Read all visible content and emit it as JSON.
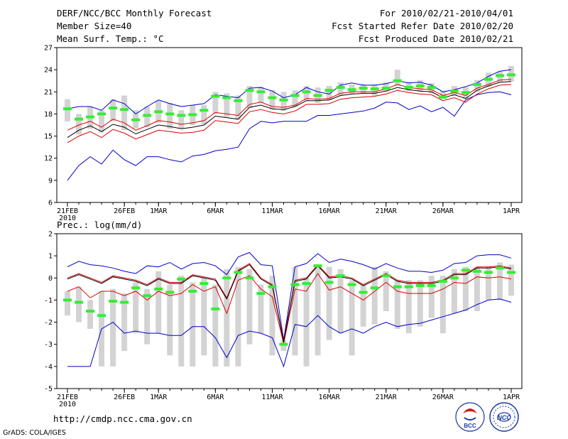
{
  "header": {
    "title": "DERF/NCC/BCC Monthly Forecast",
    "member_size": "Member Size=40",
    "period": "For 2010/02/21-2010/04/01",
    "fcst_started": "Fcst Started Refer Date 2010/02/20",
    "fcst_produced": "Fcst Produced Date 2010/02/21"
  },
  "footer": {
    "url": "http://cmdp.ncc.cma.gov.cn",
    "grads_credit": "GrADS: COLA/IGES",
    "logo_bcc_text": "BCC",
    "logo_ncc_text": "NCC"
  },
  "colors": {
    "max_min_line": "#0000cc",
    "mean_line": "#000000",
    "spread_line": "#dd0000",
    "median_marker": "#33ee33",
    "box": "#d3d3d3"
  },
  "chart_data": [
    {
      "type": "line",
      "title": "Mean Surf. Temp.: °C",
      "ylim": [
        6,
        27
      ],
      "yticks": [
        6,
        9,
        12,
        15,
        18,
        21,
        24,
        27
      ],
      "xtick_labels": [
        "21FEB",
        "26FEB",
        "1MAR",
        "6MAR",
        "11MAR",
        "16MAR",
        "21MAR",
        "26MAR",
        "1APR"
      ],
      "xtick_days": [
        0,
        5,
        8,
        13,
        18,
        23,
        28,
        33,
        39
      ],
      "x_year_label": "2010",
      "series": [
        {
          "name": "max",
          "values": [
            18.7,
            19.0,
            19.0,
            18.5,
            19.9,
            19.4,
            18.0,
            19.0,
            19.9,
            19.4,
            19.0,
            19.2,
            19.4,
            20.6,
            20.4,
            20.2,
            21.5,
            21.6,
            21.1,
            20.2,
            20.6,
            21.6,
            21.0,
            20.7,
            21.9,
            22.2,
            21.9,
            21.9,
            22.1,
            22.5,
            22.2,
            22.3,
            21.9,
            21.0,
            21.3,
            21.7,
            22.2,
            23.1,
            23.8,
            24.0
          ]
        },
        {
          "name": "spread_upper",
          "values": [
            15.8,
            16.5,
            17.0,
            16.2,
            17.3,
            16.8,
            15.8,
            16.4,
            17.1,
            16.9,
            16.6,
            16.8,
            17.1,
            18.2,
            18.0,
            17.8,
            19.3,
            19.6,
            19.0,
            18.9,
            19.2,
            20.1,
            20.0,
            20.1,
            20.8,
            21.0,
            21.0,
            21.0,
            21.4,
            22.0,
            21.6,
            21.4,
            21.3,
            20.5,
            20.9,
            20.5,
            21.5,
            22.0,
            22.6,
            22.7
          ]
        },
        {
          "name": "mean",
          "values": [
            14.8,
            15.8,
            16.4,
            15.6,
            16.6,
            16.2,
            15.3,
            15.9,
            16.5,
            16.3,
            16.0,
            16.2,
            16.5,
            17.7,
            17.5,
            17.3,
            18.9,
            19.2,
            18.7,
            18.6,
            19.0,
            19.8,
            19.8,
            19.9,
            20.5,
            20.7,
            20.8,
            20.8,
            21.1,
            21.6,
            21.3,
            21.1,
            21.0,
            20.2,
            20.6,
            20.1,
            21.2,
            21.8,
            22.3,
            22.4
          ]
        },
        {
          "name": "spread_lower",
          "values": [
            14.1,
            15.0,
            15.6,
            14.8,
            15.9,
            15.4,
            14.6,
            15.2,
            15.8,
            15.6,
            15.4,
            15.5,
            15.8,
            17.1,
            16.9,
            16.7,
            18.3,
            18.6,
            18.2,
            18.0,
            18.4,
            19.3,
            19.3,
            19.4,
            20.0,
            20.2,
            20.3,
            20.4,
            20.7,
            21.2,
            20.9,
            20.7,
            20.6,
            19.8,
            20.2,
            19.6,
            20.7,
            21.4,
            21.9,
            22.0
          ]
        },
        {
          "name": "min",
          "values": [
            9.0,
            11.0,
            12.2,
            11.2,
            13.1,
            11.8,
            11.0,
            12.2,
            12.2,
            11.8,
            11.5,
            12.3,
            12.5,
            13.0,
            13.2,
            13.5,
            16.0,
            17.0,
            16.8,
            17.0,
            17.0,
            17.0,
            17.8,
            17.8,
            18.0,
            18.2,
            18.4,
            18.8,
            19.6,
            19.5,
            18.6,
            19.1,
            18.3,
            18.9,
            17.7,
            19.9,
            20.6,
            20.9,
            21.0,
            20.6
          ]
        },
        {
          "name": "median",
          "values": [
            18.7,
            17.3,
            17.6,
            18.0,
            18.8,
            18.6,
            17.2,
            17.8,
            18.3,
            18.0,
            17.8,
            17.9,
            18.5,
            20.4,
            20.2,
            19.8,
            21.2,
            21.0,
            20.2,
            19.9,
            20.5,
            21.0,
            20.5,
            21.2,
            21.6,
            21.3,
            21.5,
            21.4,
            21.5,
            22.5,
            21.6,
            21.8,
            21.6,
            20.3,
            21.1,
            20.9,
            22.0,
            22.7,
            23.2,
            23.3
          ]
        },
        {
          "name": "box_top",
          "values": [
            20.0,
            18.0,
            19.0,
            18.5,
            20.0,
            20.5,
            18.5,
            19.0,
            19.8,
            19.5,
            18.5,
            19.2,
            19.2,
            21.0,
            20.8,
            20.5,
            21.8,
            21.7,
            21.2,
            21.0,
            21.2,
            21.8,
            21.6,
            21.8,
            22.3,
            22.0,
            22.0,
            22.0,
            22.3,
            24.0,
            22.3,
            22.6,
            22.2,
            21.1,
            21.8,
            21.6,
            22.6,
            23.6,
            23.8,
            24.5
          ]
        },
        {
          "name": "box_bottom",
          "values": [
            17.0,
            15.2,
            16.0,
            15.5,
            17.0,
            15.8,
            16.0,
            16.2,
            16.8,
            16.0,
            16.0,
            16.5,
            16.6,
            18.0,
            17.6,
            17.2,
            18.8,
            19.5,
            18.6,
            18.4,
            19.0,
            19.8,
            19.5,
            19.9,
            20.5,
            20.7,
            20.8,
            20.5,
            21.0,
            21.8,
            21.1,
            21.0,
            20.8,
            20.0,
            20.5,
            20.0,
            21.0,
            21.7,
            22.3,
            22.4
          ]
        }
      ]
    },
    {
      "type": "line",
      "title": "Prec.: log(mm/d)",
      "ylim": [
        -5,
        2
      ],
      "yticks": [
        -5,
        -4,
        -3,
        -2,
        -1,
        0,
        1,
        2
      ],
      "xtick_labels": [
        "21FEB",
        "26FEB",
        "1MAR",
        "6MAR",
        "11MAR",
        "16MAR",
        "21MAR",
        "26MAR",
        "1APR"
      ],
      "xtick_days": [
        0,
        5,
        8,
        13,
        18,
        23,
        28,
        33,
        39
      ],
      "x_year_label": "2010",
      "series": [
        {
          "name": "max",
          "values": [
            0.5,
            0.75,
            0.6,
            0.55,
            0.45,
            0.3,
            0.2,
            0.55,
            0.5,
            0.7,
            0.4,
            0.65,
            0.7,
            0.55,
            0.15,
            0.95,
            1.15,
            0.6,
            0.55,
            -2.8,
            0.5,
            0.65,
            1.1,
            0.7,
            0.85,
            0.75,
            0.6,
            0.4,
            0.65,
            0.45,
            0.3,
            0.3,
            0.25,
            0.35,
            0.65,
            0.7,
            1.0,
            1.05,
            1.05,
            0.9
          ]
        },
        {
          "name": "spread_upper",
          "values": [
            0.0,
            0.2,
            0.0,
            -0.2,
            0.1,
            0.0,
            -0.1,
            -0.3,
            0.0,
            -0.2,
            -0.2,
            0.15,
            0.05,
            -0.05,
            -0.9,
            0.35,
            0.65,
            0.0,
            -0.3,
            -2.85,
            -0.1,
            0.0,
            0.6,
            0.05,
            0.1,
            0.0,
            -0.3,
            -0.05,
            0.2,
            -0.1,
            -0.2,
            -0.2,
            -0.2,
            -0.1,
            0.2,
            0.2,
            0.5,
            0.5,
            0.55,
            0.45
          ]
        },
        {
          "name": "mean",
          "values": [
            -0.05,
            0.15,
            -0.05,
            -0.25,
            0.05,
            -0.05,
            -0.15,
            -0.35,
            -0.05,
            -0.25,
            -0.25,
            0.1,
            0.0,
            -0.1,
            -0.95,
            0.3,
            0.6,
            -0.05,
            -0.35,
            -2.9,
            -0.15,
            -0.05,
            0.55,
            0.0,
            0.05,
            -0.05,
            -0.35,
            -0.1,
            0.15,
            -0.15,
            -0.25,
            -0.25,
            -0.25,
            -0.15,
            0.15,
            0.15,
            0.45,
            0.45,
            0.5,
            0.4
          ]
        },
        {
          "name": "spread_lower",
          "values": [
            -0.6,
            -0.4,
            -0.9,
            -0.6,
            -0.6,
            -0.8,
            -0.6,
            -1.0,
            -0.6,
            -0.8,
            -0.7,
            -0.3,
            -0.6,
            -0.4,
            -1.6,
            -0.1,
            0.1,
            -0.5,
            -0.85,
            -2.95,
            -0.5,
            -0.6,
            0.2,
            -0.55,
            -0.4,
            -0.7,
            -1.0,
            -0.6,
            -0.2,
            -0.6,
            -0.7,
            -0.7,
            -0.7,
            -0.5,
            -0.2,
            -0.25,
            0.05,
            0.0,
            0.05,
            -0.05
          ]
        },
        {
          "name": "min",
          "values": [
            -4.0,
            -4.0,
            -4.0,
            -2.3,
            -2.0,
            -2.5,
            -2.4,
            -2.5,
            -2.5,
            -2.6,
            -2.6,
            -2.2,
            -2.2,
            -2.7,
            -3.6,
            -2.6,
            -2.4,
            -2.5,
            -2.7,
            -4.0,
            -2.1,
            -2.2,
            -1.7,
            -2.2,
            -2.5,
            -2.3,
            -2.5,
            -2.2,
            -2.0,
            -2.2,
            -2.1,
            -2.05,
            -1.9,
            -1.75,
            -1.6,
            -1.45,
            -1.2,
            -1.0,
            -0.95,
            -1.1
          ]
        },
        {
          "name": "median",
          "values": [
            -1.0,
            -1.1,
            -1.5,
            -1.7,
            -1.05,
            -1.1,
            -0.45,
            -0.8,
            -0.5,
            -0.65,
            -0.05,
            -0.6,
            -0.25,
            -1.4,
            0.0,
            0.25,
            0.0,
            -0.7,
            -0.4,
            -3.0,
            -0.3,
            -0.25,
            0.55,
            -0.2,
            0.1,
            -0.3,
            -0.65,
            -0.45,
            0.1,
            -0.4,
            -0.4,
            -0.35,
            -0.35,
            -0.15,
            0.0,
            0.35,
            0.3,
            0.25,
            0.45,
            0.25
          ]
        },
        {
          "name": "box_top",
          "values": [
            -0.6,
            -0.4,
            -1.0,
            -0.6,
            -0.5,
            -0.7,
            -0.2,
            -0.5,
            0.3,
            -0.3,
            0.1,
            -0.2,
            0.0,
            -0.3,
            0.4,
            0.5,
            0.4,
            -0.3,
            0.1,
            -2.8,
            0.5,
            0.0,
            0.6,
            0.5,
            0.4,
            -0.1,
            -0.3,
            0.5,
            0.3,
            -0.1,
            -0.1,
            -0.1,
            0.1,
            0.1,
            0.4,
            0.5,
            0.5,
            0.5,
            0.7,
            0.6
          ]
        },
        {
          "name": "box_bottom",
          "values": [
            -1.7,
            -2.0,
            -2.3,
            -4.0,
            -4.0,
            -3.3,
            -2.5,
            -3.0,
            -2.5,
            -3.5,
            -4.0,
            -4.0,
            -3.5,
            -4.0,
            -4.0,
            -4.0,
            -3.0,
            -2.5,
            -3.5,
            -3.3,
            -3.5,
            -4.0,
            -3.5,
            -2.8,
            -2.5,
            -3.5,
            -2.2,
            -2.1,
            -1.5,
            -2.3,
            -2.5,
            -2.2,
            -1.8,
            -2.5,
            -1.6,
            -1.5,
            -1.5,
            -1.0,
            -1.0,
            -0.8
          ]
        }
      ]
    }
  ]
}
